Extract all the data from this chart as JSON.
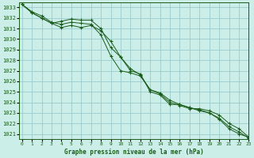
{
  "title": "Graphe pression niveau de la mer (hPa)",
  "bg_color": "#cceee8",
  "grid_color": "#99cccc",
  "line_color": "#1a5c1a",
  "ylim": [
    1020.5,
    1033.5
  ],
  "xlim": [
    -0.3,
    23
  ],
  "yticks": [
    1021,
    1022,
    1023,
    1024,
    1025,
    1026,
    1027,
    1028,
    1029,
    1030,
    1031,
    1032,
    1033
  ],
  "xticks": [
    0,
    1,
    2,
    3,
    4,
    5,
    6,
    7,
    8,
    9,
    10,
    11,
    12,
    13,
    14,
    15,
    16,
    17,
    18,
    19,
    20,
    21,
    22,
    23
  ],
  "series1_x": [
    0,
    1,
    2,
    3,
    4,
    5,
    6,
    7,
    8,
    9,
    10,
    11,
    12,
    13,
    14,
    15,
    16,
    17,
    18,
    19,
    20,
    21,
    22,
    23
  ],
  "series1_y": [
    1033.3,
    1032.6,
    1032.2,
    1031.6,
    1031.4,
    1031.6,
    1031.5,
    1031.4,
    1030.4,
    1028.4,
    1027.0,
    1026.8,
    1026.5,
    1025.2,
    1024.8,
    1024.0,
    1023.7,
    1023.4,
    1023.4,
    1023.2,
    1022.8,
    1022.0,
    1021.5,
    1020.7
  ],
  "series2_x": [
    0,
    1,
    2,
    3,
    4,
    5,
    6,
    7,
    8,
    9,
    10,
    11,
    12,
    13,
    14,
    15,
    16,
    17,
    18,
    19,
    20,
    21,
    22,
    23
  ],
  "series2_y": [
    1033.3,
    1032.5,
    1032.0,
    1031.5,
    1031.7,
    1031.9,
    1031.8,
    1031.8,
    1031.0,
    1029.2,
    1028.3,
    1027.0,
    1026.7,
    1025.0,
    1024.7,
    1023.8,
    1023.8,
    1023.5,
    1023.2,
    1023.0,
    1022.5,
    1021.7,
    1021.2,
    1020.6
  ],
  "series3_x": [
    0,
    1,
    2,
    3,
    4,
    5,
    6,
    7,
    8,
    9,
    10,
    11,
    12,
    13,
    14,
    15,
    16,
    17,
    18,
    19,
    20,
    21,
    22,
    23
  ],
  "series3_y": [
    1033.3,
    1032.5,
    1032.0,
    1031.5,
    1031.1,
    1031.3,
    1031.1,
    1031.3,
    1030.8,
    1029.8,
    1028.3,
    1027.2,
    1026.6,
    1025.2,
    1024.9,
    1024.2,
    1023.8,
    1023.5,
    1023.3,
    1023.0,
    1022.4,
    1021.5,
    1021.0,
    1020.7
  ]
}
